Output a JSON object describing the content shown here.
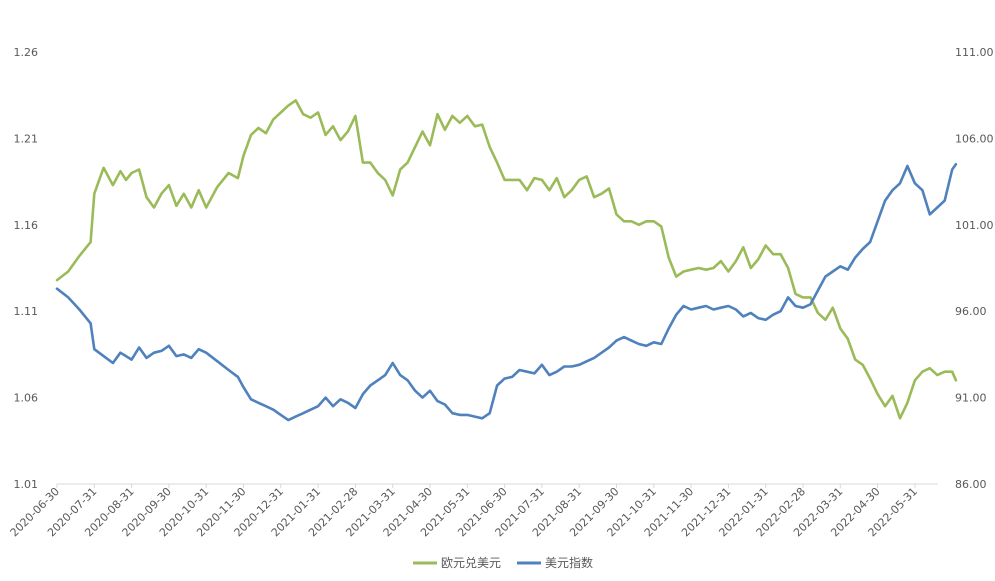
{
  "chart_data": {
    "type": "line",
    "title": "",
    "xlabel": "",
    "ylabel": "",
    "y_left": {
      "ticks": [
        "1.01",
        "1.06",
        "1.11",
        "1.16",
        "1.21",
        "1.26"
      ],
      "ylim": [
        1.01,
        1.26
      ]
    },
    "y_right": {
      "ticks": [
        "86.00",
        "91.00",
        "96.00",
        "101.00",
        "106.00",
        "111.00"
      ],
      "ylim": [
        86,
        111
      ]
    },
    "x_ticks": [
      "2020-06-30",
      "2020-07-31",
      "2020-08-31",
      "2020-09-30",
      "2020-10-31",
      "2020-11-30",
      "2020-12-31",
      "2021-01-31",
      "2021-02-28",
      "2021-03-31",
      "2021-04-30",
      "2021-05-31",
      "2021-06-30",
      "2021-07-31",
      "2021-08-31",
      "2021-09-30",
      "2021-10-31",
      "2021-11-30",
      "2021-12-31",
      "2022-01-31",
      "2022-02-28",
      "2022-03-31",
      "2022-04-30",
      "2022-05-31"
    ],
    "grid": false,
    "legend_position": "bottom",
    "series": [
      {
        "name": "欧元兑美元",
        "axis": "left",
        "color": "#9BBB59",
        "points": [
          [
            0,
            1.128
          ],
          [
            0.3,
            1.133
          ],
          [
            0.6,
            1.142
          ],
          [
            0.9,
            1.15
          ],
          [
            1.0,
            1.178
          ],
          [
            1.25,
            1.193
          ],
          [
            1.5,
            1.183
          ],
          [
            1.7,
            1.191
          ],
          [
            1.85,
            1.186
          ],
          [
            2.0,
            1.19
          ],
          [
            2.2,
            1.192
          ],
          [
            2.4,
            1.176
          ],
          [
            2.6,
            1.17
          ],
          [
            2.8,
            1.178
          ],
          [
            3.0,
            1.183
          ],
          [
            3.2,
            1.171
          ],
          [
            3.4,
            1.178
          ],
          [
            3.6,
            1.17
          ],
          [
            3.8,
            1.18
          ],
          [
            4.0,
            1.17
          ],
          [
            4.3,
            1.182
          ],
          [
            4.6,
            1.19
          ],
          [
            4.85,
            1.187
          ],
          [
            5.0,
            1.2
          ],
          [
            5.2,
            1.212
          ],
          [
            5.4,
            1.216
          ],
          [
            5.6,
            1.213
          ],
          [
            5.8,
            1.221
          ],
          [
            6.0,
            1.225
          ],
          [
            6.2,
            1.229
          ],
          [
            6.4,
            1.232
          ],
          [
            6.6,
            1.224
          ],
          [
            6.8,
            1.222
          ],
          [
            7.0,
            1.225
          ],
          [
            7.2,
            1.212
          ],
          [
            7.4,
            1.217
          ],
          [
            7.6,
            1.209
          ],
          [
            7.8,
            1.214
          ],
          [
            8.0,
            1.223
          ],
          [
            8.2,
            1.196
          ],
          [
            8.4,
            1.196
          ],
          [
            8.6,
            1.19
          ],
          [
            8.8,
            1.186
          ],
          [
            9.0,
            1.177
          ],
          [
            9.2,
            1.192
          ],
          [
            9.4,
            1.196
          ],
          [
            9.6,
            1.205
          ],
          [
            9.8,
            1.214
          ],
          [
            10.0,
            1.206
          ],
          [
            10.2,
            1.224
          ],
          [
            10.4,
            1.215
          ],
          [
            10.6,
            1.223
          ],
          [
            10.8,
            1.219
          ],
          [
            11.0,
            1.223
          ],
          [
            11.2,
            1.217
          ],
          [
            11.4,
            1.218
          ],
          [
            11.6,
            1.205
          ],
          [
            11.8,
            1.196
          ],
          [
            12.0,
            1.186
          ],
          [
            12.2,
            1.186
          ],
          [
            12.4,
            1.186
          ],
          [
            12.6,
            1.18
          ],
          [
            12.8,
            1.187
          ],
          [
            13.0,
            1.186
          ],
          [
            13.2,
            1.18
          ],
          [
            13.4,
            1.187
          ],
          [
            13.6,
            1.176
          ],
          [
            13.8,
            1.18
          ],
          [
            14.0,
            1.186
          ],
          [
            14.2,
            1.188
          ],
          [
            14.4,
            1.176
          ],
          [
            14.6,
            1.178
          ],
          [
            14.8,
            1.181
          ],
          [
            15.0,
            1.166
          ],
          [
            15.2,
            1.162
          ],
          [
            15.4,
            1.162
          ],
          [
            15.6,
            1.16
          ],
          [
            15.8,
            1.162
          ],
          [
            16.0,
            1.162
          ],
          [
            16.2,
            1.159
          ],
          [
            16.4,
            1.141
          ],
          [
            16.6,
            1.13
          ],
          [
            16.8,
            1.133
          ],
          [
            17.0,
            1.134
          ],
          [
            17.2,
            1.135
          ],
          [
            17.4,
            1.134
          ],
          [
            17.6,
            1.135
          ],
          [
            17.8,
            1.139
          ],
          [
            18.0,
            1.133
          ],
          [
            18.2,
            1.139
          ],
          [
            18.4,
            1.147
          ],
          [
            18.6,
            1.135
          ],
          [
            18.8,
            1.14
          ],
          [
            19.0,
            1.148
          ],
          [
            19.2,
            1.143
          ],
          [
            19.4,
            1.143
          ],
          [
            19.6,
            1.135
          ],
          [
            19.8,
            1.12
          ],
          [
            20.0,
            1.118
          ],
          [
            20.2,
            1.118
          ],
          [
            20.4,
            1.109
          ],
          [
            20.6,
            1.105
          ],
          [
            20.8,
            1.112
          ],
          [
            21.0,
            1.1
          ],
          [
            21.2,
            1.094
          ],
          [
            21.4,
            1.082
          ],
          [
            21.6,
            1.079
          ],
          [
            21.8,
            1.071
          ],
          [
            22.0,
            1.062
          ],
          [
            22.2,
            1.055
          ],
          [
            22.4,
            1.061
          ],
          [
            22.6,
            1.048
          ],
          [
            22.8,
            1.057
          ],
          [
            23.0,
            1.07
          ],
          [
            23.2,
            1.075
          ],
          [
            23.4,
            1.077
          ],
          [
            23.6,
            1.073
          ],
          [
            23.8,
            1.075
          ],
          [
            24.0,
            1.075
          ],
          [
            24.1,
            1.07
          ]
        ]
      },
      {
        "name": "美元指数",
        "axis": "right",
        "color": "#4F81BD",
        "points": [
          [
            0,
            97.3
          ],
          [
            0.3,
            96.8
          ],
          [
            0.6,
            96.1
          ],
          [
            0.9,
            95.3
          ],
          [
            1.0,
            93.8
          ],
          [
            1.25,
            93.4
          ],
          [
            1.5,
            93.0
          ],
          [
            1.7,
            93.6
          ],
          [
            1.85,
            93.4
          ],
          [
            2.0,
            93.2
          ],
          [
            2.2,
            93.9
          ],
          [
            2.4,
            93.3
          ],
          [
            2.6,
            93.6
          ],
          [
            2.8,
            93.7
          ],
          [
            3.0,
            94.0
          ],
          [
            3.2,
            93.4
          ],
          [
            3.4,
            93.5
          ],
          [
            3.6,
            93.3
          ],
          [
            3.8,
            93.8
          ],
          [
            4.0,
            93.6
          ],
          [
            4.3,
            93.1
          ],
          [
            4.6,
            92.6
          ],
          [
            4.85,
            92.2
          ],
          [
            5.0,
            91.6
          ],
          [
            5.2,
            90.9
          ],
          [
            5.4,
            90.7
          ],
          [
            5.6,
            90.5
          ],
          [
            5.8,
            90.3
          ],
          [
            6.0,
            90.0
          ],
          [
            6.2,
            89.7
          ],
          [
            6.4,
            89.9
          ],
          [
            6.6,
            90.1
          ],
          [
            6.8,
            90.3
          ],
          [
            7.0,
            90.5
          ],
          [
            7.2,
            91.0
          ],
          [
            7.4,
            90.5
          ],
          [
            7.6,
            90.9
          ],
          [
            7.8,
            90.7
          ],
          [
            8.0,
            90.4
          ],
          [
            8.2,
            91.2
          ],
          [
            8.4,
            91.7
          ],
          [
            8.6,
            92.0
          ],
          [
            8.8,
            92.3
          ],
          [
            9.0,
            93.0
          ],
          [
            9.2,
            92.3
          ],
          [
            9.4,
            92.0
          ],
          [
            9.6,
            91.4
          ],
          [
            9.8,
            91.0
          ],
          [
            10.0,
            91.4
          ],
          [
            10.2,
            90.8
          ],
          [
            10.4,
            90.6
          ],
          [
            10.6,
            90.1
          ],
          [
            10.8,
            90.0
          ],
          [
            11.0,
            90.0
          ],
          [
            11.2,
            89.9
          ],
          [
            11.4,
            89.8
          ],
          [
            11.6,
            90.1
          ],
          [
            11.8,
            91.7
          ],
          [
            12.0,
            92.1
          ],
          [
            12.2,
            92.2
          ],
          [
            12.4,
            92.6
          ],
          [
            12.6,
            92.5
          ],
          [
            12.8,
            92.4
          ],
          [
            13.0,
            92.9
          ],
          [
            13.2,
            92.3
          ],
          [
            13.4,
            92.5
          ],
          [
            13.6,
            92.8
          ],
          [
            13.8,
            92.8
          ],
          [
            14.0,
            92.9
          ],
          [
            14.2,
            93.1
          ],
          [
            14.4,
            93.3
          ],
          [
            14.6,
            93.6
          ],
          [
            14.8,
            93.9
          ],
          [
            15.0,
            94.3
          ],
          [
            15.2,
            94.5
          ],
          [
            15.4,
            94.3
          ],
          [
            15.6,
            94.1
          ],
          [
            15.8,
            94.0
          ],
          [
            16.0,
            94.2
          ],
          [
            16.2,
            94.1
          ],
          [
            16.4,
            95.0
          ],
          [
            16.6,
            95.8
          ],
          [
            16.8,
            96.3
          ],
          [
            17.0,
            96.1
          ],
          [
            17.2,
            96.2
          ],
          [
            17.4,
            96.3
          ],
          [
            17.6,
            96.1
          ],
          [
            17.8,
            96.2
          ],
          [
            18.0,
            96.3
          ],
          [
            18.2,
            96.1
          ],
          [
            18.4,
            95.7
          ],
          [
            18.6,
            95.9
          ],
          [
            18.8,
            95.6
          ],
          [
            19.0,
            95.5
          ],
          [
            19.2,
            95.8
          ],
          [
            19.4,
            96.0
          ],
          [
            19.6,
            96.8
          ],
          [
            19.8,
            96.3
          ],
          [
            20.0,
            96.2
          ],
          [
            20.2,
            96.4
          ],
          [
            20.4,
            97.2
          ],
          [
            20.6,
            98.0
          ],
          [
            20.8,
            98.3
          ],
          [
            21.0,
            98.6
          ],
          [
            21.2,
            98.4
          ],
          [
            21.4,
            99.1
          ],
          [
            21.6,
            99.6
          ],
          [
            21.8,
            100.0
          ],
          [
            22.0,
            101.2
          ],
          [
            22.2,
            102.4
          ],
          [
            22.4,
            103.0
          ],
          [
            22.6,
            103.4
          ],
          [
            22.8,
            104.4
          ],
          [
            23.0,
            103.4
          ],
          [
            23.2,
            103.0
          ],
          [
            23.4,
            101.6
          ],
          [
            23.6,
            102.0
          ],
          [
            23.8,
            102.4
          ],
          [
            24.0,
            104.2
          ],
          [
            24.1,
            104.5
          ]
        ]
      }
    ]
  }
}
